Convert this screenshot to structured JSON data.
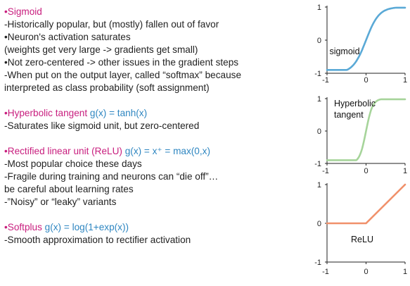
{
  "sigmoid": {
    "title": "•Sigmoid",
    "lines": [
      "-Historically popular, but (mostly) fallen out of favor",
      "•Neuron's activation saturates",
      "(weights get very large -> gradients get small)",
      "•Not zero-centered -> other issues in the gradient steps",
      "-When put on the output layer, called “softmax” because",
      "interpreted as class probability (soft assignment)"
    ]
  },
  "tanh": {
    "title": "•Hyperbolic tangent",
    "formula": "g(x) = tanh(x)",
    "lines": [
      "-Saturates like sigmoid unit, but zero-centered"
    ]
  },
  "relu": {
    "title": "•Rectified linear unit (ReLU)",
    "formula": "g(x) = x⁺ = max(0,x)",
    "lines": [
      "-Most popular choice these days",
      "-Fragile during training and neurons can “die off”…",
      "be careful about learning rates",
      "-”Noisy” or “leaky” variants"
    ]
  },
  "softplus": {
    "title": "•Softplus",
    "formula": "g(x) = log(1+exp(x))",
    "lines": [
      "-Smooth approximation to rectifier activation"
    ]
  },
  "colors": {
    "title": "#c81e7e",
    "formula": "#2e86c1",
    "sigmoid_curve": "#5aa9d6",
    "tanh_curve": "#a6d49a",
    "relu_curve": "#f0906a",
    "axis": "#222222"
  },
  "chart_data": [
    {
      "type": "line",
      "series": [
        {
          "name": "sigmoid",
          "function": "sigmoid"
        }
      ],
      "x_ticks": [
        "-1",
        "0",
        "1"
      ],
      "y_ticks": [
        "-1",
        "0",
        "1"
      ],
      "xlim": [
        -1,
        1
      ],
      "ylim": [
        -1,
        1
      ],
      "label": "sigmoid"
    },
    {
      "type": "line",
      "series": [
        {
          "name": "tanh",
          "function": "tanh"
        }
      ],
      "x_ticks": [
        "-1",
        "0",
        "1"
      ],
      "y_ticks": [
        "-1",
        "0",
        "1"
      ],
      "xlim": [
        -1,
        1
      ],
      "ylim": [
        -1,
        1
      ],
      "label": "Hyperbolic tangent",
      "label_lines": [
        "Hyperbolic",
        "tangent"
      ]
    },
    {
      "type": "line",
      "series": [
        {
          "name": "ReLU",
          "function": "relu",
          "x": [
            -1,
            0,
            1
          ],
          "y": [
            0,
            0,
            1
          ]
        }
      ],
      "x_ticks": [
        "-1",
        "0",
        "1"
      ],
      "y_ticks": [
        "-1",
        "0",
        "1"
      ],
      "xlim": [
        -1,
        1
      ],
      "ylim": [
        -1,
        1
      ],
      "label": "ReLU"
    }
  ]
}
